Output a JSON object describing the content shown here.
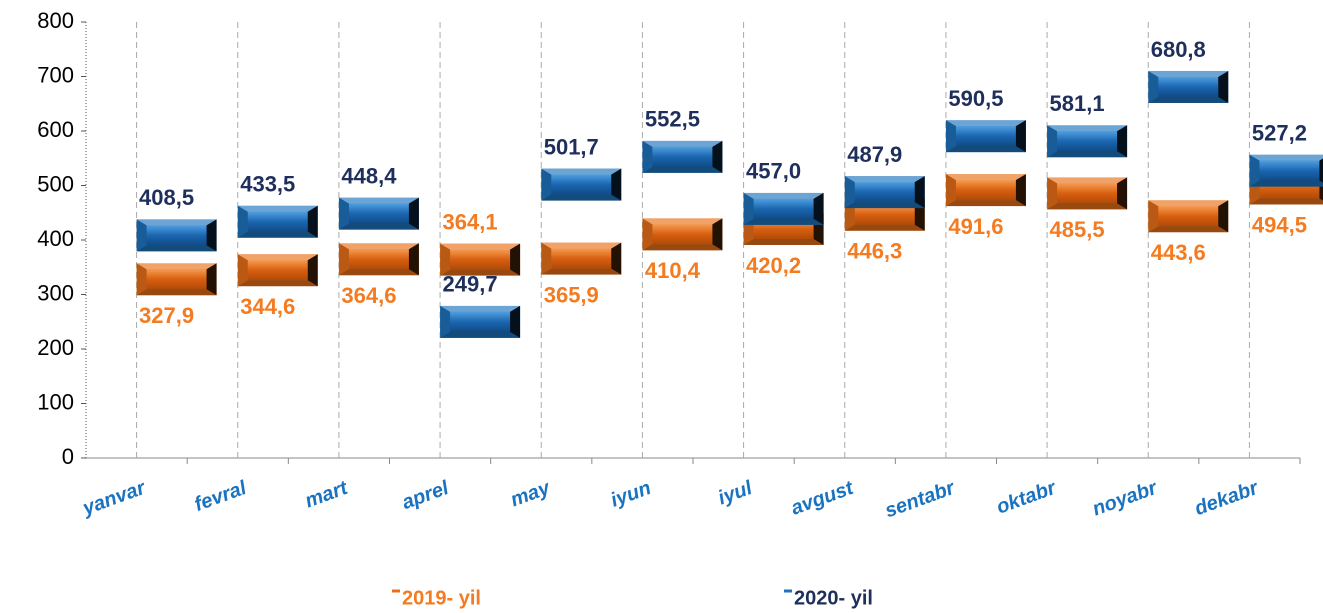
{
  "chart_data": {
    "type": "line",
    "categories": [
      "yanvar",
      "fevral",
      "mart",
      "aprel",
      "may",
      "iyun",
      "iyul",
      "avgust",
      "sentabr",
      "oktabr",
      "noyabr",
      "dekabr"
    ],
    "series": [
      {
        "name": "2019- yil",
        "color": "#e8701a",
        "label_color": "#f47b20",
        "values": [
          327.9,
          344.6,
          364.6,
          364.1,
          365.9,
          410.4,
          420.2,
          446.3,
          491.6,
          485.5,
          443.6,
          494.5
        ],
        "value_labels": [
          "327,9",
          "344,6",
          "364,6",
          "364,1",
          "365,9",
          "410,4",
          "420,2",
          "446,3",
          "491,6",
          "485,5",
          "443,6",
          "494,5"
        ]
      },
      {
        "name": "2020- yil",
        "color": "#1e73be",
        "label_color": "#1f2f5c",
        "values": [
          408.5,
          433.5,
          448.4,
          249.7,
          501.7,
          552.5,
          457.0,
          487.9,
          590.5,
          581.1,
          680.8,
          527.2
        ],
        "value_labels": [
          "408,5",
          "433,5",
          "448,4",
          "249,7",
          "501,7",
          "552,5",
          "457,0",
          "487,9",
          "590,5",
          "581,1",
          "680,8",
          "527,2"
        ]
      }
    ],
    "ylim": [
      0,
      800
    ],
    "yticks": [
      0,
      100,
      200,
      300,
      400,
      500,
      600,
      700,
      800
    ],
    "grid": true
  }
}
